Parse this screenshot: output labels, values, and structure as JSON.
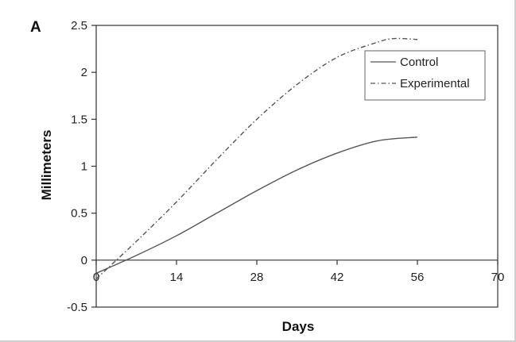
{
  "chart_data": {
    "type": "line",
    "panel_label": "A",
    "xlabel": "Days",
    "ylabel": "Millimeters",
    "xlim": [
      0,
      70
    ],
    "ylim": [
      -0.5,
      2.5
    ],
    "x_ticks": [
      0,
      14,
      28,
      42,
      56,
      70
    ],
    "x_tick_labels": [
      "0",
      "14",
      "28",
      "42",
      "56",
      "70"
    ],
    "y_ticks": [
      -0.5,
      0,
      0.5,
      1,
      1.5,
      2,
      2.5
    ],
    "y_tick_labels": [
      "-0.5",
      "0",
      "0.5",
      "1",
      "1.5",
      "2",
      "2.5"
    ],
    "grid": false,
    "legend_position": "top-right",
    "series": [
      {
        "name": "Control",
        "style": "solid",
        "color": "#555555",
        "x": [
          0,
          7,
          14,
          21,
          28,
          35,
          42,
          49,
          56
        ],
        "y": [
          -0.14,
          0.05,
          0.26,
          0.5,
          0.74,
          0.96,
          1.14,
          1.27,
          1.31
        ]
      },
      {
        "name": "Experimental",
        "style": "dash-dot",
        "color": "#555555",
        "x": [
          0,
          7,
          14,
          21,
          28,
          35,
          42,
          49,
          52,
          56
        ],
        "y": [
          -0.2,
          0.2,
          0.62,
          1.07,
          1.5,
          1.87,
          2.16,
          2.32,
          2.36,
          2.35
        ]
      }
    ]
  }
}
